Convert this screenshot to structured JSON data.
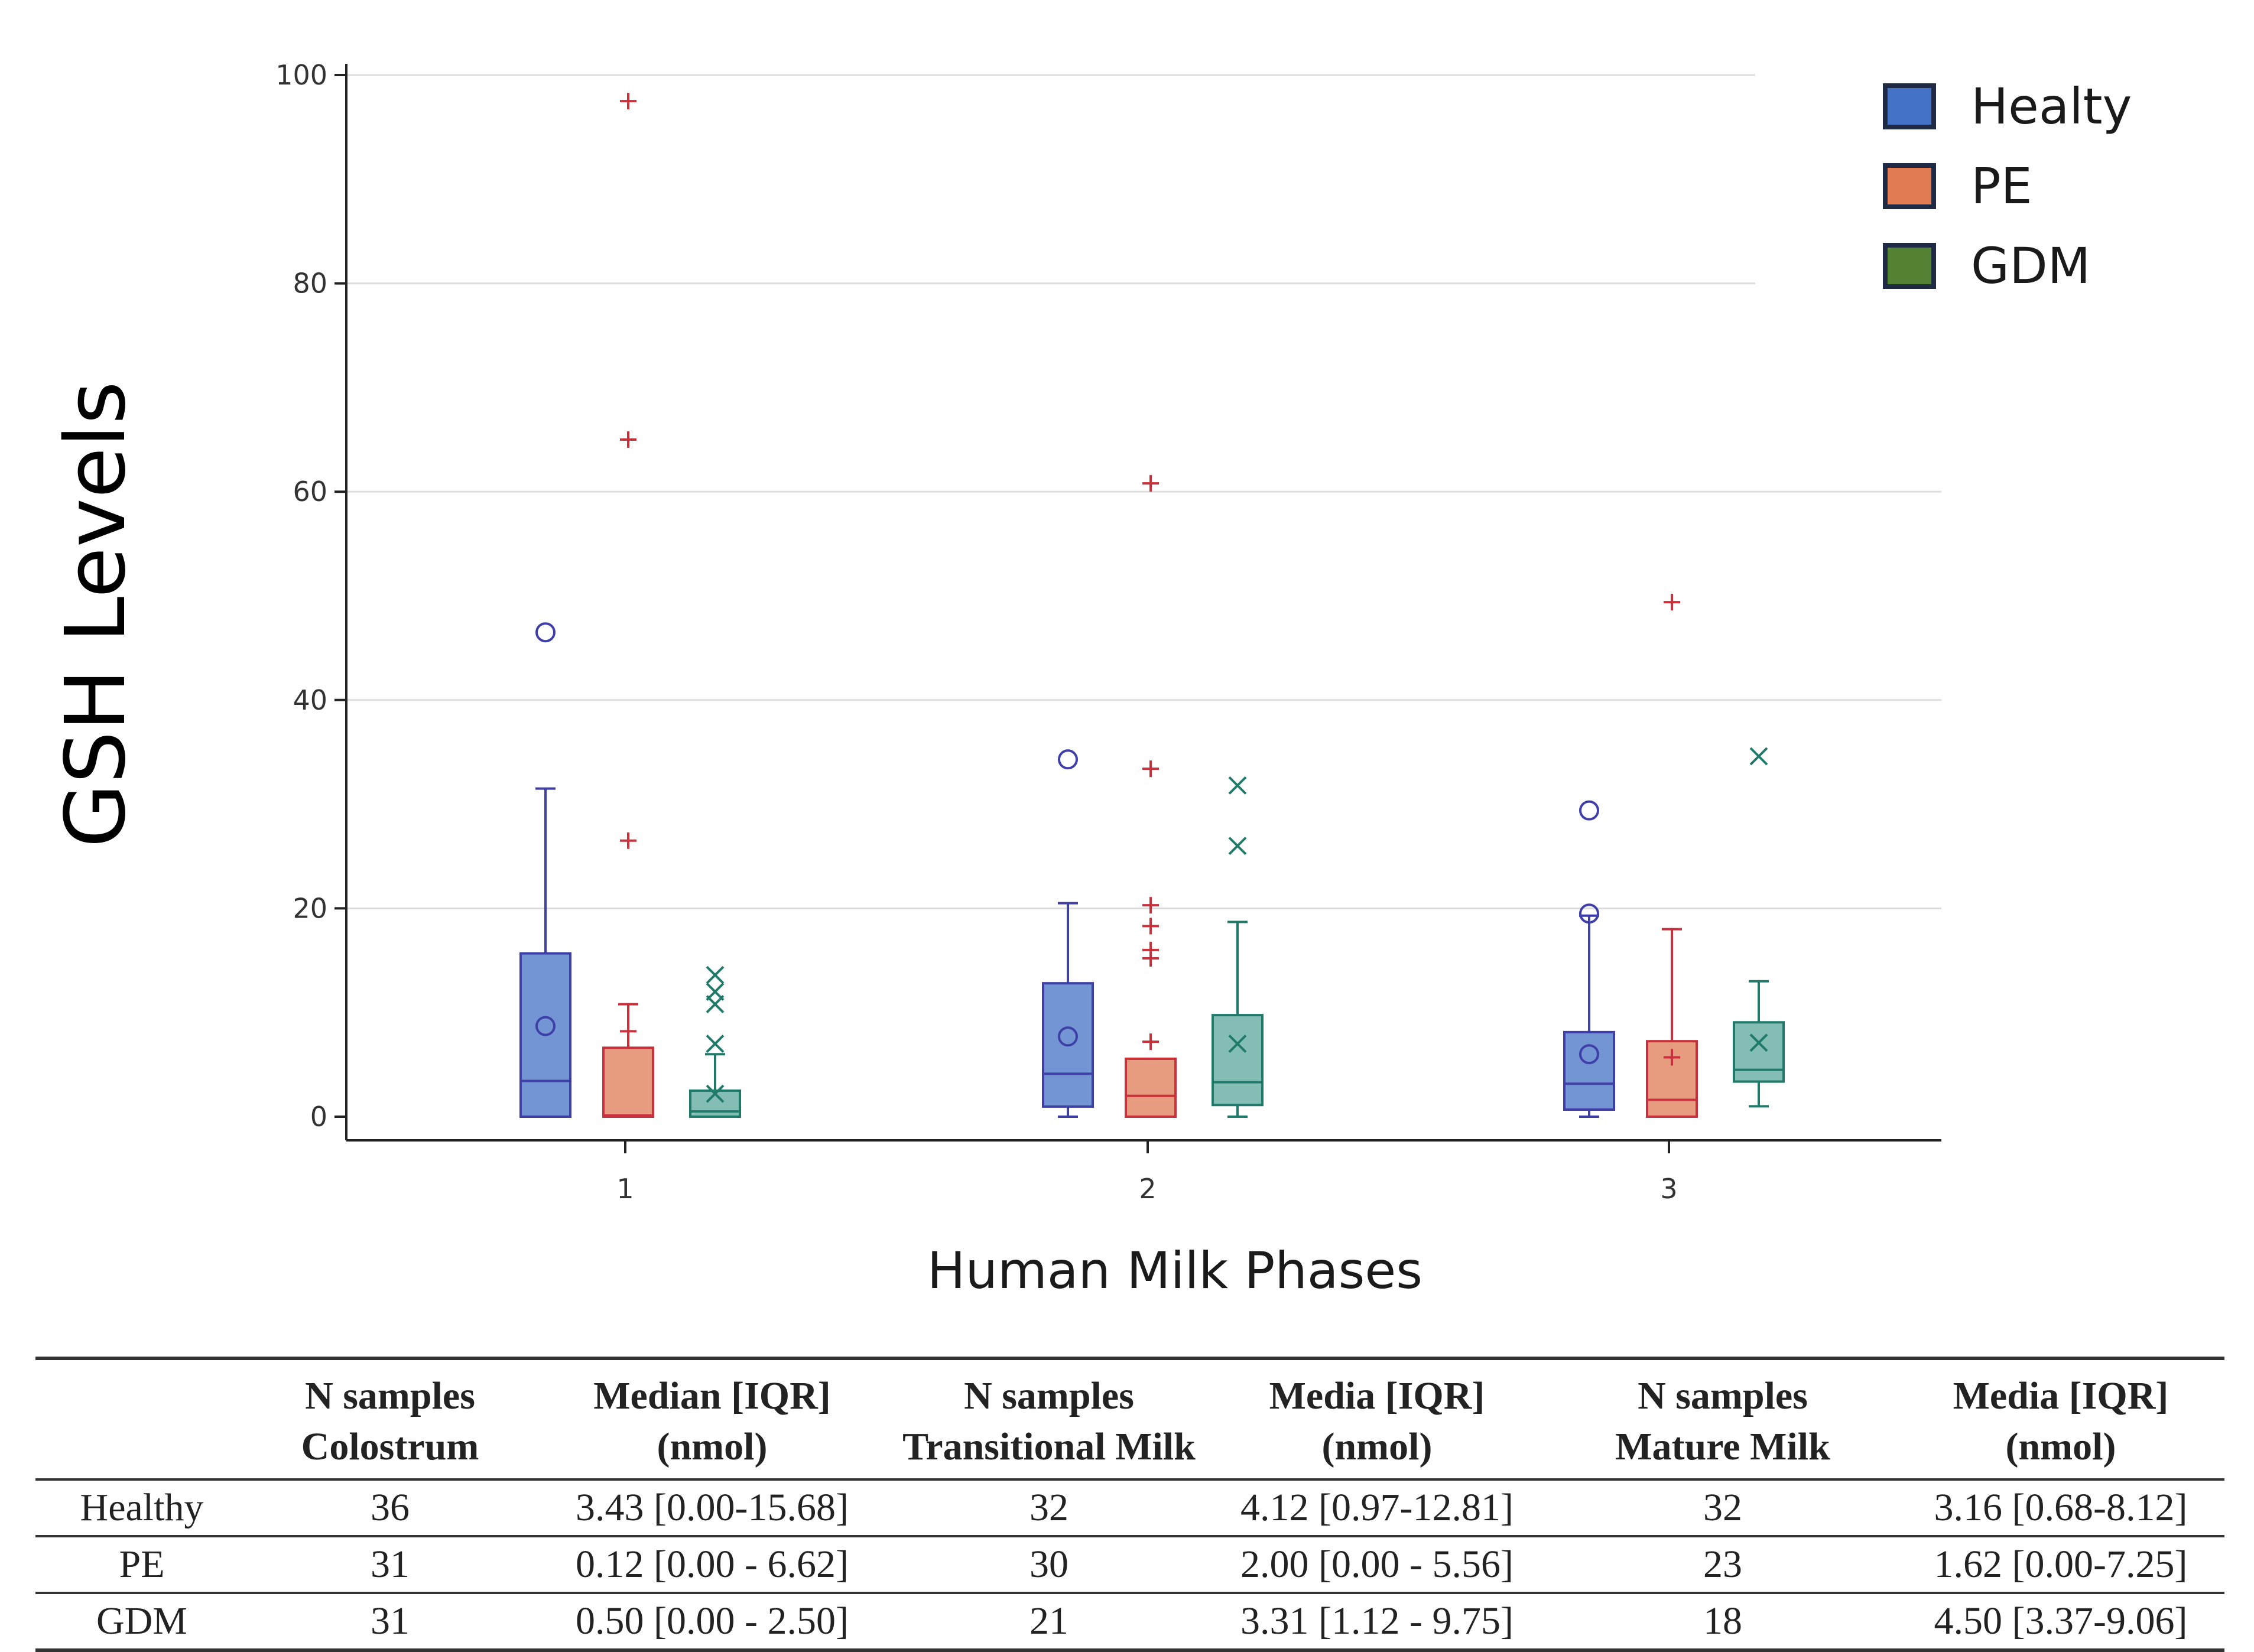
{
  "chart_data": {
    "type": "boxplot",
    "title": "",
    "ylabel": "GSH Levels",
    "xlabel": "Human Milk Phases",
    "ylim": [
      0,
      100
    ],
    "yticks": [
      0,
      20,
      40,
      60,
      80,
      100
    ],
    "categories": [
      "1",
      "2",
      "3"
    ],
    "grid": true,
    "legend_position": "top-right",
    "series": [
      {
        "name": "Healty",
        "color": "#4472C4",
        "line_color": "#3F3FA8",
        "mean_marker": "circle",
        "outlier_marker": "circle",
        "boxes": [
          {
            "category": "1",
            "min": 0.0,
            "q1": 0.0,
            "median": 3.43,
            "q3": 15.68,
            "max": 31.5,
            "mean": 8.7,
            "outliers": [
              46.5
            ]
          },
          {
            "category": "2",
            "min": 0.0,
            "q1": 0.97,
            "median": 4.12,
            "q3": 12.81,
            "max": 20.5,
            "mean": 7.7,
            "outliers": [
              34.3
            ]
          },
          {
            "category": "3",
            "min": 0.0,
            "q1": 0.68,
            "median": 3.16,
            "q3": 8.12,
            "max": 19.3,
            "mean": 6.0,
            "outliers": [
              19.5,
              29.4
            ]
          }
        ]
      },
      {
        "name": "PE",
        "color": "#E07B54",
        "line_color": "#C8323C",
        "mean_marker": "plus",
        "outlier_marker": "plus",
        "boxes": [
          {
            "category": "1",
            "min": 0.0,
            "q1": 0.0,
            "median": 0.12,
            "q3": 6.62,
            "max": 10.8,
            "mean": 8.2,
            "outliers": [
              26.5,
              65.0,
              97.5
            ]
          },
          {
            "category": "2",
            "min": 0.0,
            "q1": 0.0,
            "median": 2.0,
            "q3": 5.56,
            "max": 5.56,
            "mean": 7.2,
            "outliers": [
              15.2,
              16.0,
              18.3,
              20.3,
              33.4,
              60.8
            ]
          },
          {
            "category": "3",
            "min": 0.0,
            "q1": 0.0,
            "median": 1.62,
            "q3": 7.25,
            "max": 18.0,
            "mean": 5.7,
            "outliers": [
              49.4
            ]
          }
        ]
      },
      {
        "name": "GDM",
        "color": "#548235",
        "box_fill": "#5BA79A",
        "line_color": "#1F7A6A",
        "mean_marker": "x",
        "outlier_marker": "x",
        "boxes": [
          {
            "category": "1",
            "min": 0.0,
            "q1": 0.0,
            "median": 0.5,
            "q3": 2.5,
            "max": 6.0,
            "mean": 2.2,
            "outliers": [
              7.0,
              10.8,
              12.0,
              13.6
            ]
          },
          {
            "category": "2",
            "min": 0.0,
            "q1": 1.12,
            "median": 3.31,
            "q3": 9.75,
            "max": 18.7,
            "mean": 7.0,
            "outliers": [
              26.0,
              31.8
            ]
          },
          {
            "category": "3",
            "min": 1.0,
            "q1": 3.37,
            "median": 4.5,
            "q3": 9.06,
            "max": 13.0,
            "mean": 7.1,
            "outliers": [
              34.6
            ]
          }
        ]
      }
    ]
  },
  "table": {
    "headers": [
      [
        "",
        ""
      ],
      [
        "N samples",
        "Colostrum"
      ],
      [
        "Median [IQR]",
        "(nmol)"
      ],
      [
        "N samples",
        "Transitional Milk"
      ],
      [
        "Media [IQR]",
        "(nmol)"
      ],
      [
        "N samples",
        "Mature Milk"
      ],
      [
        "Media [IQR]",
        "(nmol)"
      ]
    ],
    "rows": [
      [
        "Healthy",
        "36",
        "3.43 [0.00-15.68]",
        "32",
        "4.12 [0.97-12.81]",
        "32",
        "3.16 [0.68-8.12]"
      ],
      [
        "PE",
        "31",
        "0.12 [0.00 - 6.62]",
        "30",
        "2.00 [0.00 - 5.56]",
        "23",
        "1.62 [0.00-7.25]"
      ],
      [
        "GDM",
        "31",
        "0.50 [0.00 - 2.50]",
        "21",
        "3.31 [1.12 - 9.75]",
        "18",
        "4.50 [3.37-9.06]"
      ]
    ]
  }
}
